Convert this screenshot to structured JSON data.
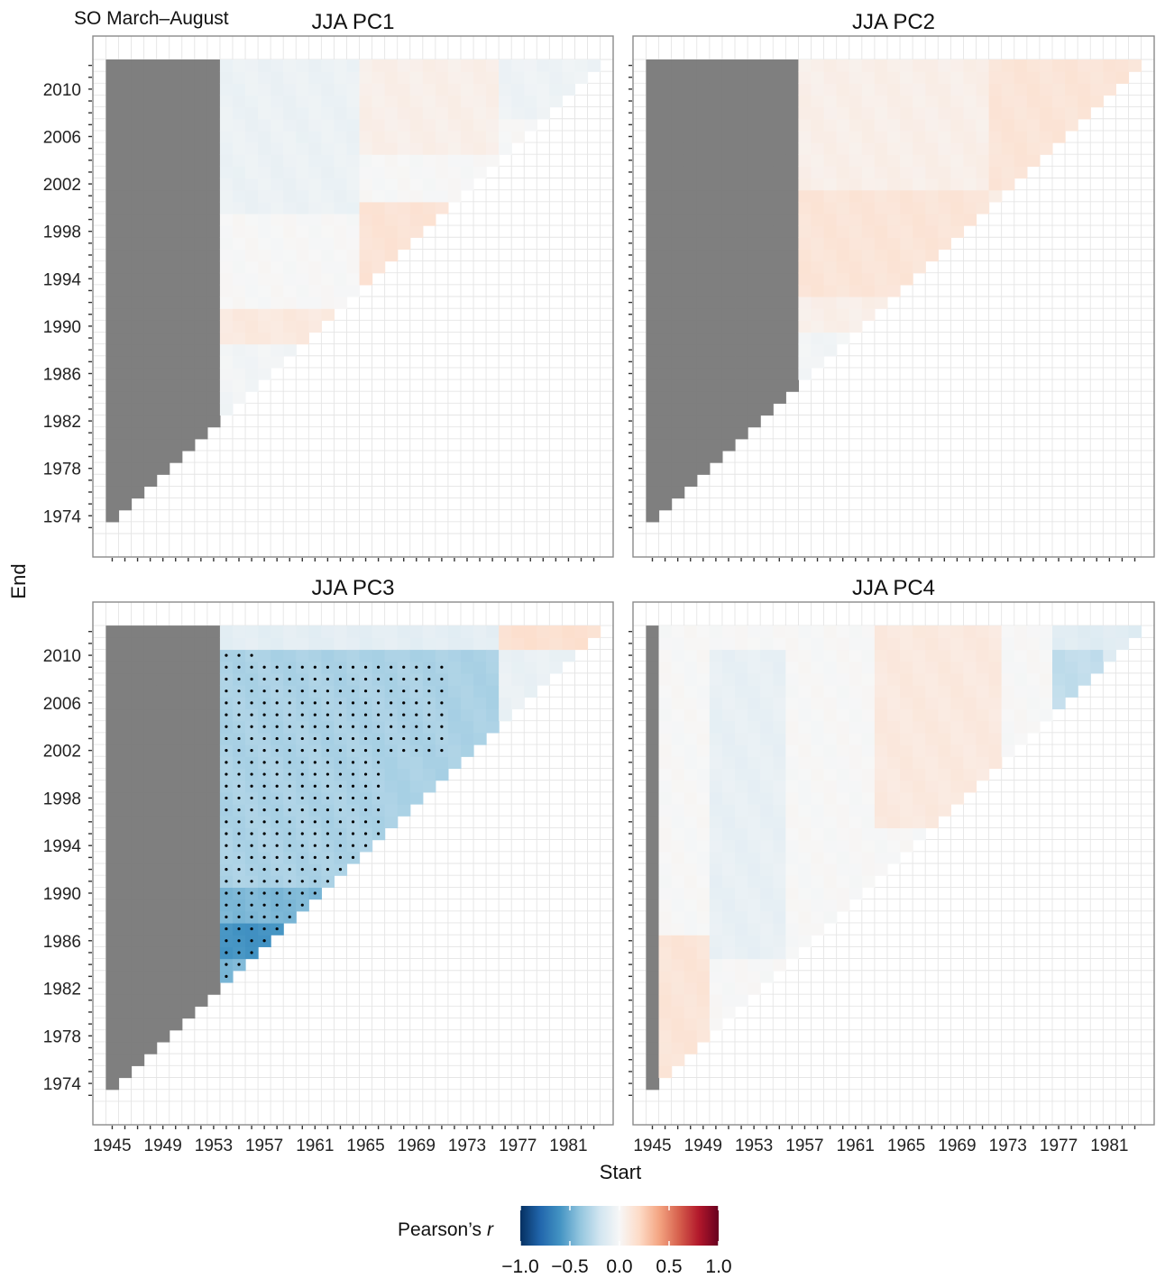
{
  "figure_title": "SO March–August",
  "xlabel": "Start",
  "ylabel": "End",
  "colors": {
    "masked": "#7f7f7f",
    "stipple": "#000000",
    "grid": "#e5e5e5",
    "frame": "#8a8a8a",
    "neg_strong": "#053061",
    "neg": "#4393c3",
    "neg_light": "#d1e5f0",
    "zero": "#f7f7f7",
    "pos_light": "#fddbc7",
    "pos": "#d6604d",
    "pos_strong": "#67001f"
  },
  "legend": {
    "title": "Pearson’s",
    "title_italic": "r",
    "ticks": [
      "−1.0",
      "−0.5",
      "0.0",
      "0.5",
      "1.0"
    ],
    "tick_values": [
      -1.0,
      -0.5,
      0.0,
      0.5,
      1.0
    ]
  },
  "chart_data": [
    {
      "type": "heatmap",
      "title": "JJA  PC1",
      "x_range": [
        1945,
        1983
      ],
      "y_range": [
        1973,
        2012
      ],
      "xticks": [
        "1945",
        "1949",
        "1953",
        "1957",
        "1961",
        "1965",
        "1969",
        "1973",
        "1977",
        "1981"
      ],
      "yticks": [
        "1974",
        "1978",
        "1982",
        "1986",
        "1990",
        "1994",
        "1998",
        "2002",
        "2006",
        "2010"
      ],
      "masked_start_max": 1953,
      "min_window_years": 29,
      "regions": [
        {
          "start": [
            1954,
            1983
          ],
          "end": [
            1973,
            2012
          ],
          "r": 0.0
        },
        {
          "start": [
            1954,
            1964
          ],
          "end": [
            2000,
            2012
          ],
          "r": -0.06
        },
        {
          "start": [
            1965,
            1975
          ],
          "end": [
            2005,
            2012
          ],
          "r": 0.06
        },
        {
          "start": [
            1965,
            1975
          ],
          "end": [
            1993,
            2000
          ],
          "r": 0.14
        },
        {
          "start": [
            1954,
            1964
          ],
          "end": [
            1989,
            1991
          ],
          "r": 0.1
        },
        {
          "start": [
            1976,
            1983
          ],
          "end": [
            2008,
            2012
          ],
          "r": -0.05
        },
        {
          "start": [
            1954,
            1960
          ],
          "end": [
            1983,
            1988
          ],
          "r": -0.03
        }
      ],
      "stippled": []
    },
    {
      "type": "heatmap",
      "title": "JJA  PC2",
      "x_range": [
        1945,
        1983
      ],
      "y_range": [
        1973,
        2012
      ],
      "xticks": [
        "1945",
        "1949",
        "1953",
        "1957",
        "1961",
        "1965",
        "1969",
        "1973",
        "1977",
        "1981"
      ],
      "yticks": [
        "1974",
        "1978",
        "1982",
        "1986",
        "1990",
        "1994",
        "1998",
        "2002",
        "2006",
        "2010"
      ],
      "masked_start_max": 1956,
      "min_window_years": 29,
      "regions": [
        {
          "start": [
            1957,
            1983
          ],
          "end": [
            1973,
            2012
          ],
          "r": 0.06
        },
        {
          "start": [
            1957,
            1971
          ],
          "end": [
            1993,
            2001
          ],
          "r": 0.13
        },
        {
          "start": [
            1972,
            1983
          ],
          "end": [
            2002,
            2012
          ],
          "r": 0.13
        },
        {
          "start": [
            1957,
            1965
          ],
          "end": [
            1985,
            1989
          ],
          "r": -0.03
        },
        {
          "start": [
            1957,
            1957
          ],
          "end": [
            1985,
            1985
          ],
          "r": 0.3
        }
      ],
      "stippled": []
    },
    {
      "type": "heatmap",
      "title": "JJA  PC3",
      "x_range": [
        1945,
        1983
      ],
      "y_range": [
        1973,
        2012
      ],
      "xticks": [
        "1945",
        "1949",
        "1953",
        "1957",
        "1961",
        "1965",
        "1969",
        "1973",
        "1977",
        "1981"
      ],
      "yticks": [
        "1974",
        "1978",
        "1982",
        "1986",
        "1990",
        "1994",
        "1998",
        "2002",
        "2006",
        "2010"
      ],
      "masked_start_max": 1953,
      "min_window_years": 29,
      "regions": [
        {
          "start": [
            1954,
            1983
          ],
          "end": [
            1973,
            2012
          ],
          "r": -0.15
        },
        {
          "start": [
            1954,
            1975
          ],
          "end": [
            1973,
            2010
          ],
          "r": -0.32
        },
        {
          "start": [
            1954,
            1963
          ],
          "end": [
            1982,
            1990
          ],
          "r": -0.45
        },
        {
          "start": [
            1954,
            1959
          ],
          "end": [
            1985,
            1987
          ],
          "r": -0.6
        },
        {
          "start": [
            1976,
            1983
          ],
          "end": [
            2011,
            2012
          ],
          "r": 0.16
        },
        {
          "start": [
            1976,
            1983
          ],
          "end": [
            1973,
            2010
          ],
          "r": -0.07
        },
        {
          "start": [
            1954,
            1975
          ],
          "end": [
            2011,
            2012
          ],
          "r": -0.1
        }
      ],
      "stippled": [
        {
          "start": [
            1954,
            1966
          ],
          "end": [
            1983,
            2001
          ]
        },
        {
          "start": [
            1954,
            1971
          ],
          "end": [
            2002,
            2009
          ]
        },
        {
          "start": [
            1954,
            1956
          ],
          "end": [
            2010,
            2010
          ]
        }
      ]
    },
    {
      "type": "heatmap",
      "title": "JJA  PC4",
      "x_range": [
        1945,
        1983
      ],
      "y_range": [
        1973,
        2012
      ],
      "xticks": [
        "1945",
        "1949",
        "1953",
        "1957",
        "1961",
        "1965",
        "1969",
        "1973",
        "1977",
        "1981"
      ],
      "yticks": [
        "1974",
        "1978",
        "1982",
        "1986",
        "1990",
        "1994",
        "1998",
        "2002",
        "2006",
        "2010"
      ],
      "masked_start_max": 1945,
      "min_window_years": 29,
      "regions": [
        {
          "start": [
            1946,
            1983
          ],
          "end": [
            1973,
            2012
          ],
          "r": 0.0
        },
        {
          "start": [
            1950,
            1955
          ],
          "end": [
            1985,
            2010
          ],
          "r": -0.08
        },
        {
          "start": [
            1963,
            1972
          ],
          "end": [
            1996,
            2012
          ],
          "r": 0.1
        },
        {
          "start": [
            1946,
            1949
          ],
          "end": [
            1973,
            1986
          ],
          "r": 0.13
        },
        {
          "start": [
            1977,
            1983
          ],
          "end": [
            2003,
            2012
          ],
          "r": -0.12
        },
        {
          "start": [
            1977,
            1980
          ],
          "end": [
            2005,
            2010
          ],
          "r": -0.25
        }
      ],
      "stippled": []
    }
  ]
}
